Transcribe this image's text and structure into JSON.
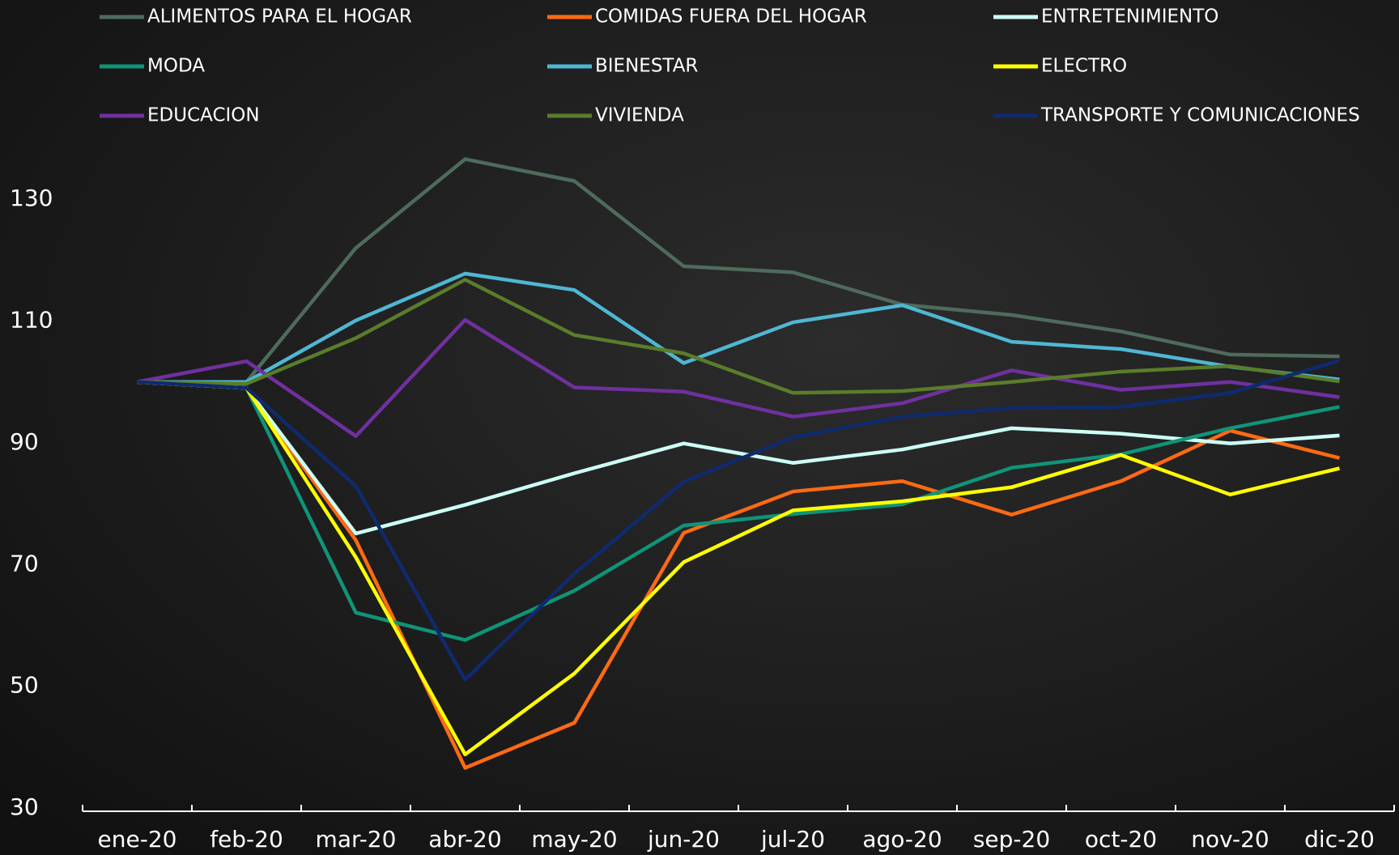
{
  "chart_data": {
    "type": "line",
    "categories": [
      "ene-20",
      "feb-20",
      "mar-20",
      "abr-20",
      "may-20",
      "jun-20",
      "jul-20",
      "ago-20",
      "sep-20",
      "oct-20",
      "nov-20",
      "dic-20"
    ],
    "series": [
      {
        "name": "ALIMENTOS PARA EL HOGAR",
        "color": "#4e6b5c",
        "values": [
          100,
          100,
          122,
          136.6,
          133,
          119,
          118,
          112.7,
          111,
          108.3,
          104.5,
          104.2
        ]
      },
      {
        "name": "COMIDAS FUERA DEL HOGAR",
        "color": "#ff6a13",
        "values": [
          100,
          99,
          74,
          36.6,
          44,
          75.2,
          82,
          83.7,
          78.2,
          83.7,
          92,
          87.5
        ]
      },
      {
        "name": "ENTRETENIMIENTO",
        "color": "#ccfff5",
        "values": [
          100,
          99,
          75.1,
          79.8,
          85,
          89.9,
          86.7,
          88.9,
          92.4,
          91.5,
          89.9,
          91.2
        ]
      },
      {
        "name": "MODA",
        "color": "#0f9478",
        "values": [
          100,
          99,
          62.1,
          57.6,
          65.7,
          76.4,
          78.3,
          79.9,
          85.9,
          88.1,
          92.4,
          95.9
        ]
      },
      {
        "name": "BIENESTAR",
        "color": "#4fb7d3",
        "values": [
          100,
          100,
          110.1,
          117.8,
          115.1,
          103.1,
          109.8,
          112.6,
          106.6,
          105.4,
          102.5,
          100.4
        ]
      },
      {
        "name": "ELECTRO",
        "color": "#ffff00",
        "values": [
          100,
          99,
          71.2,
          38.8,
          52.1,
          70.4,
          78.9,
          80.4,
          82.7,
          88,
          81.5,
          85.8
        ]
      },
      {
        "name": "EDUCACION",
        "color": "#7030a0",
        "values": [
          100,
          103.4,
          91.1,
          110.2,
          99.1,
          98.4,
          94.3,
          96.5,
          101.9,
          98.7,
          100,
          97.5
        ]
      },
      {
        "name": "VIVIENDA",
        "color": "#5a7d2a",
        "values": [
          100,
          99.7,
          107.2,
          116.8,
          107.7,
          104.7,
          98.2,
          98.5,
          100,
          101.7,
          102.6,
          100.1
        ]
      },
      {
        "name": "TRANSPORTE Y COMUNICACIONES",
        "color": "#0f2a6e",
        "values": [
          100,
          99,
          82.9,
          51.1,
          68.5,
          83.6,
          90.9,
          94.3,
          95.7,
          95.9,
          98.2,
          103.5
        ]
      }
    ],
    "ylim": [
      30,
      140
    ],
    "yticks": [
      30,
      50,
      70,
      90,
      110,
      130
    ],
    "grid": false
  }
}
